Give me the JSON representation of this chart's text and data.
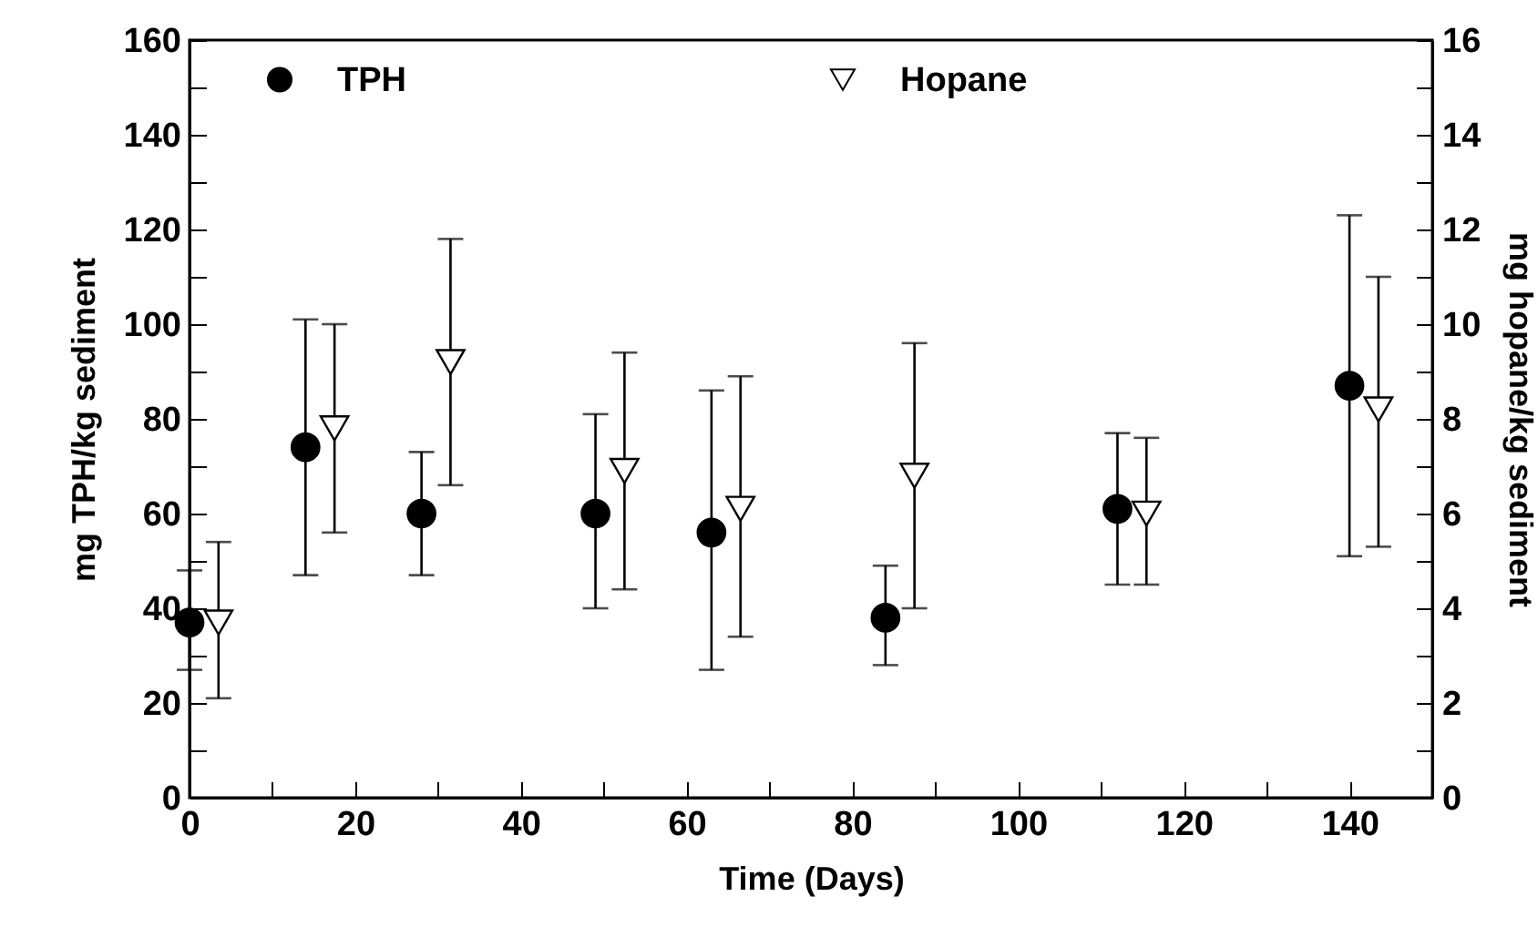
{
  "chart_data": {
    "type": "scatter",
    "xlabel": "Time (Days)",
    "ylabel": "mg TPH/kg sediment",
    "y2label": "mg hopane/kg sediment",
    "xlim": [
      0,
      150
    ],
    "xticks": [
      0,
      {
        "value": 10,
        "label": null
      },
      20,
      {
        "value": 30,
        "label": null
      },
      40,
      {
        "value": 50,
        "label": null
      },
      60,
      {
        "value": 70,
        "label": null
      },
      80,
      {
        "value": 90,
        "label": null
      },
      100,
      {
        "value": 110,
        "label": null
      },
      120,
      {
        "value": 130,
        "label": null
      },
      140
    ],
    "ylim": [
      0,
      160
    ],
    "yticks": [
      0,
      {
        "value": 10,
        "label": null
      },
      20,
      {
        "value": 30,
        "label": null
      },
      40,
      {
        "value": 50,
        "label": null
      },
      60,
      {
        "value": 70,
        "label": null
      },
      80,
      {
        "value": 90,
        "label": null
      },
      100,
      {
        "value": 110,
        "label": null
      },
      120,
      {
        "value": 130,
        "label": null
      },
      140,
      {
        "value": 150,
        "label": null
      },
      160
    ],
    "y2lim": [
      0,
      16
    ],
    "y2ticks": [
      0,
      {
        "value": 1,
        "label": null
      },
      2,
      {
        "value": 3,
        "label": null
      },
      4,
      {
        "value": 5,
        "label": null
      },
      6,
      {
        "value": 7,
        "label": null
      },
      8,
      {
        "value": 9,
        "label": null
      },
      10,
      {
        "value": 11,
        "label": null
      },
      12,
      {
        "value": 13,
        "label": null
      },
      14,
      {
        "value": 15,
        "label": null
      },
      16
    ],
    "grid": false,
    "legend": "top",
    "series": [
      {
        "name": "TPH",
        "color": "#000000",
        "marker": "circle",
        "x": [
          0,
          14,
          28,
          49,
          63,
          84,
          112,
          140
        ],
        "values": [
          37,
          74,
          60,
          60,
          56,
          38,
          61,
          87
        ],
        "errors": [
          [
            27,
            48
          ],
          [
            47,
            101
          ],
          [
            47,
            73
          ],
          [
            40,
            81
          ],
          [
            27,
            86
          ],
          [
            28,
            49
          ],
          [
            45,
            77
          ],
          [
            51,
            123
          ]
        ]
      },
      {
        "name": "Hopane",
        "color": "#000000",
        "marker": "triangle",
        "axis": "y2",
        "x": [
          3.5,
          17.5,
          31.5,
          52.5,
          66.5,
          87.5,
          115.5,
          143.5
        ],
        "values": [
          3.7,
          7.8,
          9.2,
          6.9,
          6.1,
          6.8,
          6.0,
          8.2
        ],
        "errors": [
          [
            2.1,
            5.4
          ],
          [
            5.6,
            10
          ],
          [
            6.6,
            11.8
          ],
          [
            4.4,
            9.4
          ],
          [
            3.4,
            8.9
          ],
          [
            4,
            9.6
          ],
          [
            4.5,
            7.6
          ],
          [
            5.3,
            11
          ]
        ]
      }
    ]
  }
}
